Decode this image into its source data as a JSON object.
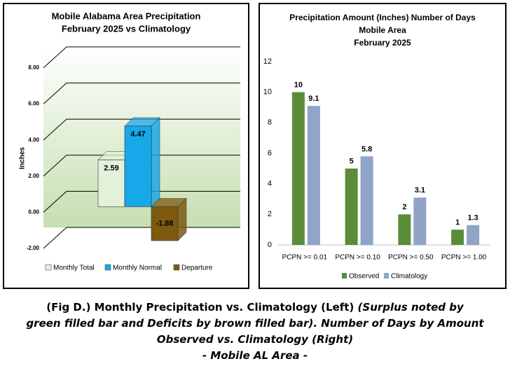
{
  "chart_data": [
    {
      "type": "bar3d",
      "title_lines": [
        "Mobile Alabama Area Precipitation",
        "February 2025 vs Climatology"
      ],
      "y_label": "Inches",
      "series": [
        {
          "name": "Monthly Total",
          "color": "#e4f1da",
          "values": [
            2.59
          ]
        },
        {
          "name": "Monthly Normal",
          "color": "#17a8ea",
          "values": [
            4.47
          ]
        },
        {
          "name": "Departure",
          "color": "#7d5a0f",
          "values": [
            -1.88
          ]
        }
      ],
      "ylim": [
        -2,
        8
      ],
      "yticks": [
        {
          "value": -2,
          "label": "-2.00"
        },
        {
          "value": 0,
          "label": "0.00"
        },
        {
          "value": 2,
          "label": "2.00"
        },
        {
          "value": 4,
          "label": "4.00"
        },
        {
          "value": 6,
          "label": "6.00"
        },
        {
          "value": 8,
          "label": "8.00"
        }
      ],
      "grid": true,
      "legend": "bottom"
    },
    {
      "type": "bar",
      "title_lines": [
        "Precipitation Amount (Inches) Number of Days",
        "Mobile Area",
        "February 2025"
      ],
      "categories": [
        "PCPN >= 0.01",
        "PCPN >= 0.10",
        "PCPN >= 0.50",
        "PCPN >= 1.00"
      ],
      "series": [
        {
          "name": "Observed",
          "color": "#5b8c3a",
          "values": [
            10,
            5,
            2,
            1
          ]
        },
        {
          "name": "Climatology",
          "color": "#8fa4c6",
          "values": [
            9.1,
            5.8,
            3.1,
            1.3
          ]
        }
      ],
      "ylim": [
        0,
        12
      ],
      "yticks": [
        0,
        2,
        4,
        6,
        8,
        10,
        12
      ],
      "grid": false,
      "legend": "bottom"
    }
  ],
  "caption": {
    "plain": "(Fig D.) Monthly Precipitation vs. Climatology (Left) ",
    "italic": [
      "(Surplus noted by",
      "green filled bar and Deficits by brown filled bar). Number of Days by Amount",
      "Observed vs. Climatology (Right)",
      "- Mobile AL Area -"
    ]
  }
}
